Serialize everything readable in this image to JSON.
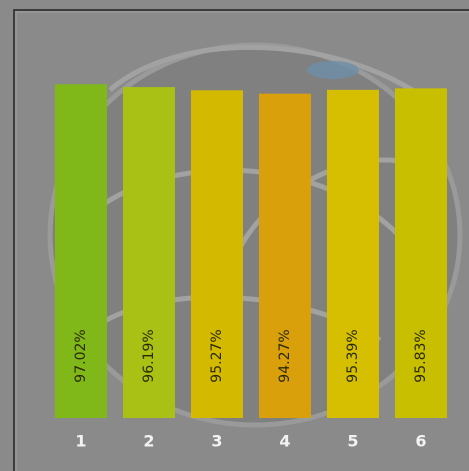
{
  "chart_data": {
    "type": "bar",
    "categories": [
      "1",
      "2",
      "3",
      "4",
      "5",
      "6"
    ],
    "values": [
      97.02,
      96.19,
      95.27,
      94.27,
      95.39,
      95.83
    ],
    "value_labels": [
      "97.02%",
      "96.19%",
      "95.27%",
      "94.27%",
      "95.39%",
      "95.83%"
    ],
    "colors": [
      "#80b81a",
      "#a9c114",
      "#d3b900",
      "#daa00c",
      "#d6bf00",
      "#c8bf00"
    ],
    "ylim": [
      0,
      100
    ]
  }
}
